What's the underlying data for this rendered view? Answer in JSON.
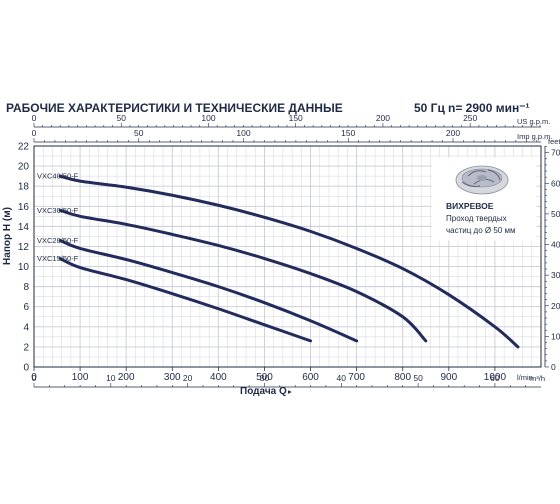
{
  "header": {
    "title": "РАБОЧИЕ ХАРАКТЕРИСТИКИ И ТЕХНИЧЕСКИЕ ДАННЫЕ",
    "frequency": "50 Гц",
    "speed": "n= 2900 мин⁻¹"
  },
  "colors": {
    "curve": "#232a5c",
    "grid": "#c9ccd6",
    "text": "#1f2a44"
  },
  "impeller_note": {
    "icon": "vortex-impeller-icon",
    "title": "ВИХРЕВОЕ",
    "line1": "Проход твердых",
    "line2": "частиц до Ø 50 мм"
  },
  "chart_data": {
    "type": "line",
    "xlabel": "Подача Q",
    "x_unit": "l/min",
    "ylabel": "Напор H (м)",
    "xlim": [
      0,
      1100
    ],
    "ylim": [
      0,
      22
    ],
    "x_ticks": [
      "0",
      "100",
      "200",
      "300",
      "400",
      "500",
      "600",
      "700",
      "800",
      "900",
      "1000"
    ],
    "y_ticks": [
      "0",
      "2",
      "4",
      "6",
      "8",
      "10",
      "12",
      "14",
      "16",
      "18",
      "20",
      "22"
    ],
    "grid": true,
    "top_axes": [
      {
        "unit": "US g.p.m.",
        "max": 290.6,
        "ticks": [
          "0",
          "50",
          "100",
          "150",
          "200",
          "250"
        ]
      },
      {
        "unit": "Imp g.p.m.",
        "max": 242,
        "ticks": [
          "0",
          "50",
          "100",
          "150",
          "200"
        ]
      }
    ],
    "bottom_axis": {
      "unit": "m³/h",
      "max": 66,
      "ticks": [
        "0",
        "10",
        "20",
        "30",
        "40",
        "50",
        "60"
      ]
    },
    "right_axis": {
      "unit": "feet",
      "max": 72.18,
      "ticks": [
        "0",
        "10",
        "20",
        "30",
        "40",
        "50",
        "60",
        "70"
      ]
    },
    "series": [
      {
        "name": "VXC15/50-F",
        "x": [
          0,
          100,
          200,
          300,
          400,
          500,
          600
        ],
        "y": [
          10.8,
          9.9,
          8.7,
          7.3,
          5.8,
          4.2,
          2.6
        ]
      },
      {
        "name": "VXC20/50-F",
        "x": [
          0,
          100,
          200,
          300,
          400,
          500,
          600,
          700
        ],
        "y": [
          12.6,
          11.8,
          10.7,
          9.4,
          8.0,
          6.4,
          4.6,
          2.6
        ]
      },
      {
        "name": "VXC30/50-F",
        "x": [
          0,
          100,
          200,
          300,
          400,
          500,
          600,
          700,
          800,
          850
        ],
        "y": [
          15.6,
          15.0,
          14.2,
          13.2,
          12.1,
          10.8,
          9.3,
          7.5,
          5.0,
          2.6
        ]
      },
      {
        "name": "VXC40/50-F",
        "x": [
          0,
          100,
          200,
          300,
          400,
          500,
          600,
          700,
          800,
          900,
          1000,
          1050
        ],
        "y": [
          19.0,
          18.5,
          17.9,
          17.1,
          16.1,
          14.9,
          13.5,
          11.8,
          9.8,
          7.2,
          4.0,
          2.0
        ]
      }
    ]
  }
}
